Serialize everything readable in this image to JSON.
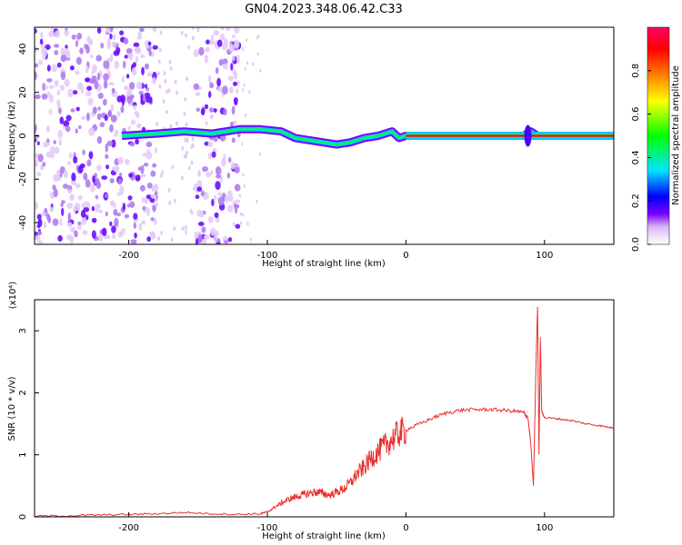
{
  "title": "GN04.2023.348.06.42.C33",
  "chart_data": [
    {
      "type": "heatmap",
      "title": "GN04.2023.348.06.42.C33",
      "xlabel": "Height of straight line (km)",
      "ylabel": "Frequency (Hz)",
      "xlim": [
        -268,
        150
      ],
      "ylim": [
        -50,
        50
      ],
      "x_ticks": [
        -200,
        -100,
        0,
        100
      ],
      "x_tick_labels": [
        "-200",
        "-100",
        "0",
        "100"
      ],
      "y_ticks": [
        -40,
        -20,
        0,
        20,
        40
      ],
      "y_tick_labels": [
        "-40",
        "-20",
        "0",
        "20",
        "40"
      ],
      "grid": false,
      "colorbar": {
        "label": "Normalized spectral amplitude",
        "range": [
          0,
          1
        ],
        "ticks": [
          0.0,
          0.2,
          0.4,
          0.6,
          0.8
        ],
        "tick_labels": [
          "0.0",
          "0.2",
          "0.4",
          "0.6",
          "0.8"
        ],
        "colors": [
          "#ffffff",
          "#d9b8f5",
          "#7a00ff",
          "#0000ff",
          "#00e5ff",
          "#00ff00",
          "#ffff00",
          "#ff7f00",
          "#ff0000",
          "#ff0066"
        ]
      },
      "ridge": {
        "x": [
          -205,
          -180,
          -160,
          -140,
          -120,
          -105,
          -90,
          -80,
          -70,
          -60,
          -50,
          -40,
          -30,
          -20,
          -10,
          -5,
          0,
          40,
          85,
          90,
          95,
          150
        ],
        "y": [
          0,
          1,
          2,
          1,
          3,
          3,
          2,
          -1,
          -2,
          -3,
          -4,
          -3,
          -1,
          0,
          2,
          -1,
          0,
          0,
          0,
          2,
          0,
          0
        ]
      },
      "noise_bands": [
        [
          -268,
          -180
        ],
        [
          -152,
          -120
        ]
      ]
    },
    {
      "type": "line",
      "xlabel": "Height of straight line (km)",
      "ylabel": "SNR (10 * v/v)",
      "y_multiplier": "(x10⁴)",
      "xlim": [
        -268,
        150
      ],
      "ylim": [
        0,
        3.5
      ],
      "x_ticks": [
        -200,
        -100,
        0,
        100
      ],
      "x_tick_labels": [
        "-200",
        "-100",
        "0",
        "100"
      ],
      "y_ticks": [
        0,
        1,
        2,
        3
      ],
      "y_tick_labels": [
        "0",
        "1",
        "2",
        "3"
      ],
      "grid": false,
      "series_color": "#e8302e",
      "x": [
        -268,
        -240,
        -220,
        -200,
        -180,
        -160,
        -140,
        -120,
        -105,
        -100,
        -95,
        -90,
        -85,
        -80,
        -75,
        -70,
        -65,
        -60,
        -55,
        -50,
        -45,
        -40,
        -35,
        -30,
        -25,
        -20,
        -15,
        -10,
        -5,
        0,
        10,
        20,
        30,
        40,
        50,
        60,
        70,
        80,
        85,
        88,
        90,
        92,
        94,
        95,
        96,
        97,
        98,
        100,
        110,
        120,
        130,
        140,
        150
      ],
      "y": [
        0.01,
        0.02,
        0.03,
        0.04,
        0.05,
        0.07,
        0.05,
        0.04,
        0.05,
        0.08,
        0.15,
        0.22,
        0.28,
        0.32,
        0.35,
        0.38,
        0.4,
        0.38,
        0.35,
        0.4,
        0.45,
        0.55,
        0.7,
        0.8,
        0.95,
        1.05,
        1.15,
        1.25,
        1.35,
        1.4,
        1.5,
        1.6,
        1.68,
        1.72,
        1.73,
        1.73,
        1.72,
        1.7,
        1.68,
        1.6,
        1.2,
        0.5,
        2.6,
        3.4,
        1.0,
        2.9,
        1.7,
        1.6,
        1.58,
        1.55,
        1.5,
        1.47,
        1.43
      ]
    }
  ]
}
